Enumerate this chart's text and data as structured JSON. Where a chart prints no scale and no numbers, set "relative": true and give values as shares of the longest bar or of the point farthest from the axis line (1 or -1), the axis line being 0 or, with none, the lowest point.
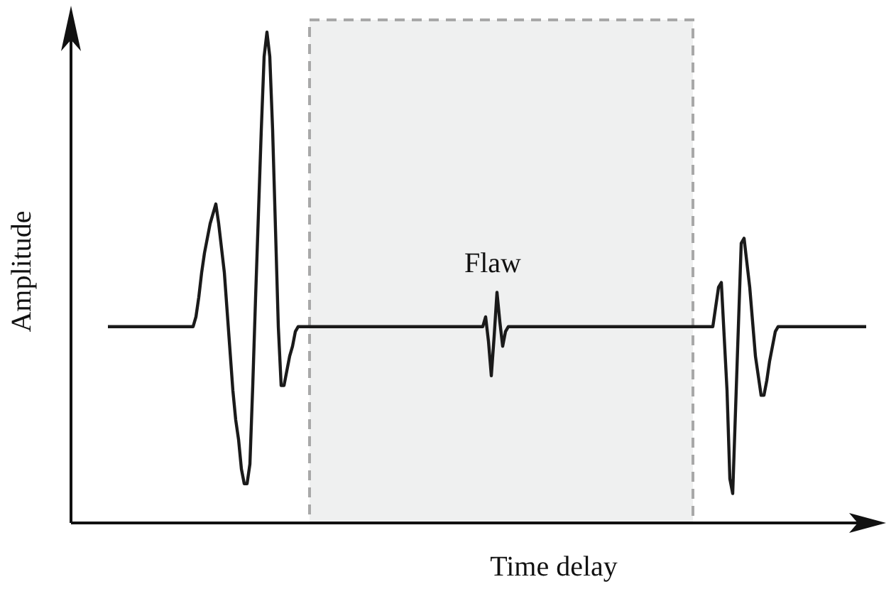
{
  "chart_data": {
    "type": "line",
    "relative": true,
    "xlabel": "Time delay",
    "ylabel": "Amplitude",
    "marker": "none",
    "line_style": "solid",
    "annotations": [
      "Flaw"
    ],
    "categories": [
      null,
      null,
      null,
      null,
      null,
      null,
      null,
      null,
      null,
      null,
      null,
      null,
      null,
      null,
      null,
      null,
      null,
      null,
      null,
      null,
      null,
      null,
      null,
      null,
      null,
      null,
      null,
      null,
      null,
      null,
      null,
      null,
      null,
      null,
      null,
      null,
      null,
      null,
      null,
      null,
      null,
      null,
      null,
      null,
      null,
      null,
      null,
      null,
      null,
      null,
      null,
      null,
      null,
      null,
      null,
      null,
      null,
      null,
      null,
      null,
      null,
      null,
      null,
      null,
      null,
      null,
      null,
      null,
      null,
      null,
      null,
      null,
      null,
      null,
      null,
      null,
      null,
      null,
      null,
      null,
      null,
      null,
      null,
      null,
      null,
      null,
      null,
      null,
      null,
      null,
      null,
      null,
      null,
      null,
      null,
      null,
      null,
      null,
      null,
      null,
      null,
      null,
      null,
      null,
      null,
      null,
      null,
      null,
      null,
      null,
      null,
      null,
      null,
      null,
      null,
      null,
      null,
      null,
      null,
      null,
      null,
      null,
      null,
      null,
      null,
      null,
      null,
      null,
      null,
      null,
      null,
      null,
      null,
      null,
      null,
      null,
      null,
      null,
      null,
      null,
      null,
      null,
      null,
      null,
      null,
      null,
      null,
      null,
      null,
      null,
      null,
      null,
      null,
      null,
      null,
      null,
      null,
      null,
      null,
      null,
      null,
      null,
      null,
      null,
      null,
      null,
      null,
      null,
      null,
      null,
      null,
      null,
      null,
      null,
      null,
      null,
      null,
      null,
      null,
      null,
      null,
      null,
      null,
      null,
      null,
      null,
      null,
      null,
      null,
      null,
      null,
      null,
      null,
      null,
      null,
      null,
      null,
      null,
      null,
      null,
      null,
      null,
      null,
      null,
      null,
      null,
      null,
      null,
      null,
      null,
      null,
      null,
      null,
      null,
      null,
      null,
      null,
      null,
      null,
      null,
      null,
      null,
      null,
      null,
      null,
      null,
      null,
      null,
      null,
      null,
      null,
      null,
      null,
      null,
      null,
      null,
      null,
      null,
      null,
      null,
      null,
      null,
      null,
      null,
      null,
      null,
      null,
      null,
      null,
      null,
      null,
      null,
      null,
      null,
      null,
      null,
      null,
      null,
      null,
      null,
      null,
      null,
      null,
      null,
      null,
      null,
      null,
      null
    ],
    "series": [
      {
        "color": "#1a1a1a",
        "values": [
          0.4,
          0.4,
          0.4,
          0.4,
          0.4,
          0.4,
          0.4,
          0.4,
          0.4,
          0.4,
          0.4,
          0.4,
          0.4,
          0.4,
          0.4,
          0.4,
          0.4,
          0.4,
          0.4,
          0.4,
          0.4,
          0.4,
          0.4,
          0.4,
          0.4,
          0.4,
          0.4,
          0.4,
          0.4,
          0.4,
          0.4,
          0.42,
          0.46,
          0.51,
          0.55,
          0.58,
          0.61,
          0.63,
          0.65,
          0.61,
          0.56,
          0.51,
          0.43,
          0.35,
          0.27,
          0.21,
          0.17,
          0.11,
          0.08,
          0.08,
          0.12,
          0.28,
          0.46,
          0.63,
          0.8,
          0.95,
          1.0,
          0.95,
          0.8,
          0.6,
          0.4,
          0.28,
          0.28,
          0.31,
          0.34,
          0.36,
          0.39,
          0.4,
          0.4,
          0.4,
          0.4,
          0.4,
          0.4,
          0.4,
          0.4,
          0.4,
          0.4,
          0.4,
          0.4,
          0.4,
          0.4,
          0.4,
          0.4,
          0.4,
          0.4,
          0.4,
          0.4,
          0.4,
          0.4,
          0.4,
          0.4,
          0.4,
          0.4,
          0.4,
          0.4,
          0.4,
          0.4,
          0.4,
          0.4,
          0.4,
          0.4,
          0.4,
          0.4,
          0.4,
          0.4,
          0.4,
          0.4,
          0.4,
          0.4,
          0.4,
          0.4,
          0.4,
          0.4,
          0.4,
          0.4,
          0.4,
          0.4,
          0.4,
          0.4,
          0.4,
          0.4,
          0.4,
          0.4,
          0.4,
          0.4,
          0.4,
          0.4,
          0.4,
          0.4,
          0.4,
          0.4,
          0.4,
          0.4,
          0.42,
          0.37,
          0.3,
          0.38,
          0.47,
          0.41,
          0.36,
          0.39,
          0.4,
          0.4,
          0.4,
          0.4,
          0.4,
          0.4,
          0.4,
          0.4,
          0.4,
          0.4,
          0.4,
          0.4,
          0.4,
          0.4,
          0.4,
          0.4,
          0.4,
          0.4,
          0.4,
          0.4,
          0.4,
          0.4,
          0.4,
          0.4,
          0.4,
          0.4,
          0.4,
          0.4,
          0.4,
          0.4,
          0.4,
          0.4,
          0.4,
          0.4,
          0.4,
          0.4,
          0.4,
          0.4,
          0.4,
          0.4,
          0.4,
          0.4,
          0.4,
          0.4,
          0.4,
          0.4,
          0.4,
          0.4,
          0.4,
          0.4,
          0.4,
          0.4,
          0.4,
          0.4,
          0.4,
          0.4,
          0.4,
          0.4,
          0.4,
          0.4,
          0.4,
          0.4,
          0.4,
          0.4,
          0.4,
          0.4,
          0.4,
          0.4,
          0.4,
          0.4,
          0.4,
          0.4,
          0.4,
          0.44,
          0.48,
          0.49,
          0.38,
          0.27,
          0.09,
          0.06,
          0.23,
          0.4,
          0.57,
          0.58,
          0.53,
          0.48,
          0.41,
          0.34,
          0.3,
          0.26,
          0.26,
          0.29,
          0.33,
          0.36,
          0.39,
          0.4,
          0.4,
          0.4,
          0.4,
          0.4,
          0.4,
          0.4,
          0.4,
          0.4,
          0.4,
          0.4,
          0.4,
          0.4,
          0.4,
          0.4,
          0.4,
          0.4,
          0.4,
          0.4,
          0.4,
          0.4,
          0.4,
          0.4,
          0.4,
          0.4,
          0.4,
          0.4,
          0.4,
          0.4,
          0.4,
          0.4,
          0.4
        ]
      }
    ]
  }
}
